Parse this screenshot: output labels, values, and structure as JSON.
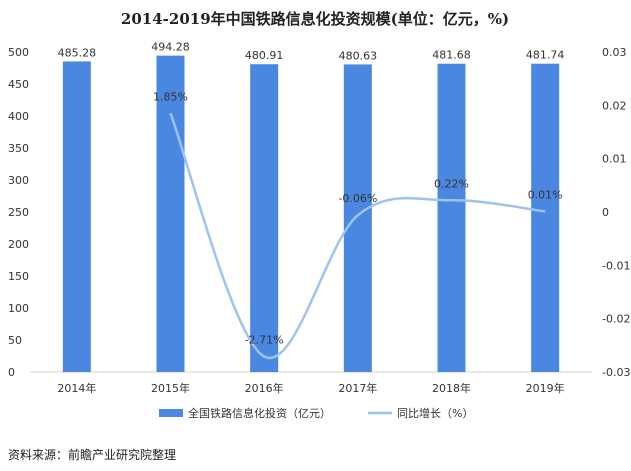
{
  "chart_data": {
    "type": "bar",
    "title": "2014-2019年中国铁路信息化投资规模(单位：亿元，%)",
    "categories": [
      "2014年",
      "2015年",
      "2016年",
      "2017年",
      "2018年",
      "2019年"
    ],
    "series": [
      {
        "name": "全国铁路信息化投资（亿元）",
        "type": "bar",
        "axis": "left",
        "values": [
          485.28,
          494.28,
          480.91,
          480.63,
          481.68,
          481.74
        ],
        "labels": [
          "485.28",
          "494.28",
          "480.91",
          "480.63",
          "481.68",
          "481.74"
        ],
        "color": "#4a87e0"
      },
      {
        "name": "同比增长（%）",
        "type": "line",
        "axis": "right",
        "values": [
          null,
          0.0185,
          -0.0271,
          -0.0006,
          0.0022,
          0.0001
        ],
        "labels": [
          "",
          "1.85%",
          "-2.71%",
          "-0.06%",
          "0.22%",
          "0.01%"
        ],
        "color": "#9fc3ef"
      }
    ],
    "y_left": {
      "min": 0,
      "max": 500,
      "ticks": [
        "0",
        "50",
        "100",
        "150",
        "200",
        "250",
        "300",
        "350",
        "400",
        "450",
        "500"
      ]
    },
    "y_right": {
      "min": -0.03,
      "max": 0.03,
      "ticks": [
        "0.03",
        "0.02",
        "0.01",
        "0",
        "-0.01",
        "-0.02",
        "-0.03"
      ],
      "tick_values": [
        0.03,
        0.02,
        0.01,
        0,
        -0.01,
        -0.02,
        -0.03
      ]
    },
    "legend_position": "bottom",
    "grid": false
  },
  "source": "资料来源：前瞻产业研究院整理"
}
